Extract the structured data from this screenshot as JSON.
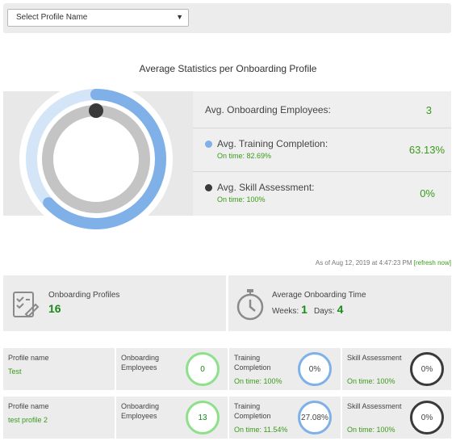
{
  "profile_select": {
    "placeholder": "Select Profile Name",
    "caret": "▼"
  },
  "stats": {
    "title": "Average Statistics per Onboarding Profile",
    "rows": [
      {
        "label": "Avg. Onboarding Employees:",
        "value": "3"
      },
      {
        "label": "Avg. Training Completion:",
        "sub": "On time: 82.69%",
        "value": "63.13%",
        "dot_color": "#7fb1e8"
      },
      {
        "label": "Avg. Skill Assessment:",
        "sub": "On time: 100%",
        "value": "0%",
        "dot_color": "#3a3a3a"
      }
    ],
    "donut": {
      "training_completion": 63.13,
      "skill_assessment": 0
    }
  },
  "as_of": {
    "text": "As of Aug 12, 2019 at 4:47:23 PM",
    "refresh": "[refresh now]"
  },
  "summary": {
    "profiles_label": "Onboarding Profiles",
    "profiles_value": "16",
    "time_label": "Average Onboarding Time",
    "weeks_label": "Weeks:",
    "weeks_value": "1",
    "days_label": "Days:",
    "days_value": "4"
  },
  "profiles": [
    {
      "name_label": "Profile name",
      "name": "Test",
      "employees_label": "Onboarding Employees",
      "employees": "0",
      "training_label": "Training Completion",
      "training_ontime": "On time: 100%",
      "training": "0%",
      "skill_label": "Skill Assessment",
      "skill_ontime": "On time: 100%",
      "skill": "0%"
    },
    {
      "name_label": "Profile name",
      "name": "test profile 2",
      "employees_label": "Onboarding Employees",
      "employees": "13",
      "training_label": "Training Completion",
      "training_ontime": "On time: 11.54%",
      "training": "27.08%",
      "skill_label": "Skill Assessment",
      "skill_ontime": "On time: 100%",
      "skill": "0%"
    }
  ],
  "colors": {
    "accent_green": "#3a9a1a",
    "training_blue": "#7fb1e8",
    "skill_dark": "#3a3a3a"
  }
}
